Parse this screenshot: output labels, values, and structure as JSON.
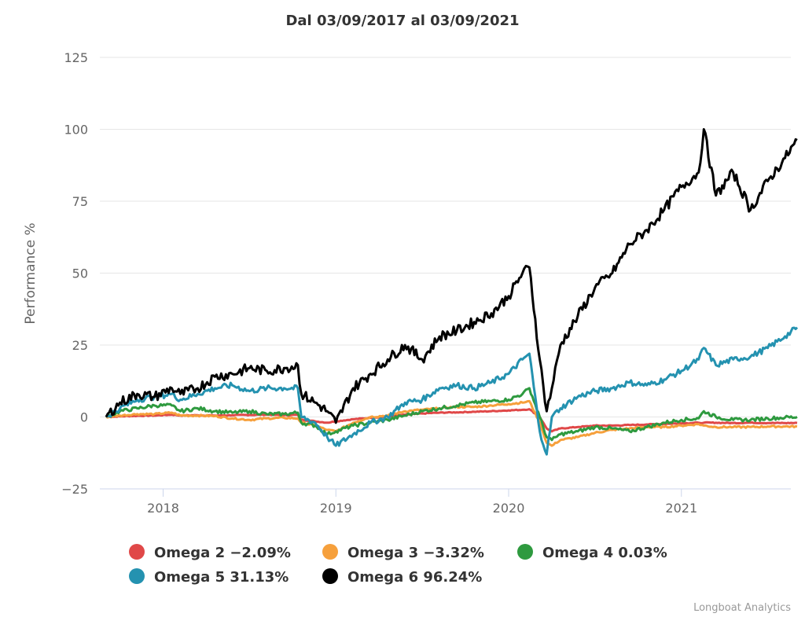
{
  "chart_data": {
    "type": "line",
    "title": "Dal 03/09/2017 al 03/09/2021",
    "xlabel": "",
    "ylabel": "Performance %",
    "xlim": [
      2017.67,
      2021.67
    ],
    "ylim": [
      -25,
      125
    ],
    "yticks": [
      "−25",
      "0",
      "25",
      "50",
      "75",
      "100",
      "125"
    ],
    "ytick_values": [
      -25,
      0,
      25,
      50,
      75,
      100,
      125
    ],
    "xticks": [
      "2018",
      "2019",
      "2020",
      "2021"
    ],
    "xtick_values": [
      2018,
      2019,
      2020,
      2021
    ],
    "grid": true,
    "legend_position": "bottom",
    "credits": "Longboat Analytics",
    "x": [
      2017.67,
      2017.75,
      2017.85,
      2017.95,
      2018.05,
      2018.1,
      2018.2,
      2018.3,
      2018.4,
      2018.5,
      2018.6,
      2018.7,
      2018.78,
      2018.8,
      2018.88,
      2018.95,
      2019.0,
      2019.1,
      2019.2,
      2019.3,
      2019.4,
      2019.5,
      2019.6,
      2019.7,
      2019.8,
      2019.9,
      2020.0,
      2020.08,
      2020.12,
      2020.18,
      2020.22,
      2020.25,
      2020.3,
      2020.4,
      2020.5,
      2020.6,
      2020.7,
      2020.8,
      2020.9,
      2021.0,
      2021.1,
      2021.13,
      2021.2,
      2021.3,
      2021.4,
      2021.5,
      2021.6,
      2021.67
    ],
    "series": [
      {
        "name": "Omega 2",
        "legend": "Omega 2 −2.09%",
        "color": "#e04848",
        "values": [
          0,
          0.2,
          0.4,
          0.5,
          0.8,
          0.5,
          0.6,
          0.5,
          0.6,
          0.7,
          0.8,
          0.6,
          0.7,
          -1.0,
          -1.5,
          -2.0,
          -1.5,
          -0.8,
          -0.3,
          0.2,
          0.8,
          1.2,
          1.5,
          1.6,
          1.8,
          2.0,
          2.3,
          2.5,
          2.7,
          0,
          -4.0,
          -5.0,
          -4.0,
          -3.5,
          -3.0,
          -3.0,
          -2.8,
          -2.6,
          -2.4,
          -2.2,
          -2.0,
          -2.0,
          -2.0,
          -2.1,
          -2.0,
          -2.1,
          -2.1,
          -2.09
        ]
      },
      {
        "name": "Omega 3",
        "legend": "Omega 3 −3.32%",
        "color": "#f6a03c",
        "values": [
          0,
          0.5,
          1.0,
          1.0,
          1.5,
          0.5,
          0.5,
          0.3,
          -0.5,
          -1.0,
          -0.5,
          -0.3,
          -0.5,
          -2.0,
          -3.0,
          -4.5,
          -5.0,
          -2.0,
          0,
          0.5,
          2.0,
          2.5,
          3.0,
          3.5,
          3.5,
          4.0,
          4.5,
          5.0,
          5.5,
          -2.0,
          -9.0,
          -10.0,
          -8.0,
          -7.0,
          -5.5,
          -4.5,
          -4.0,
          -3.5,
          -3.5,
          -3.0,
          -2.5,
          -3.0,
          -3.5,
          -3.5,
          -3.5,
          -3.3,
          -3.3,
          -3.32
        ]
      },
      {
        "name": "Omega 4",
        "legend": "Omega 4 0.03%",
        "color": "#2e9a3f",
        "values": [
          0,
          2.0,
          3.0,
          4.0,
          4.0,
          2.0,
          3.0,
          2.0,
          1.5,
          2.0,
          1.0,
          1.0,
          1.5,
          -2.0,
          -3.0,
          -6.0,
          -5.0,
          -3.0,
          -2.0,
          -1.0,
          0.5,
          2.0,
          3.0,
          4.0,
          5.0,
          5.5,
          6.0,
          8.0,
          10.0,
          0,
          -7.0,
          -8.0,
          -6.0,
          -5.0,
          -3.5,
          -4.0,
          -5.0,
          -3.5,
          -2.0,
          -1.0,
          -0.5,
          2.0,
          0,
          -1.0,
          -1.0,
          -0.5,
          -0.2,
          0.03
        ]
      },
      {
        "name": "Omega 5",
        "legend": "Omega 5 31.13%",
        "color": "#2492b0",
        "values": [
          0,
          3.0,
          6.0,
          7.0,
          8.0,
          6.0,
          8.0,
          10.0,
          11.0,
          9.0,
          10.0,
          10.0,
          10.0,
          0,
          -2.0,
          -7.0,
          -10.0,
          -6.0,
          -2.0,
          0,
          5.0,
          6.0,
          10.0,
          11.0,
          10.0,
          12.0,
          15.0,
          20.0,
          22.0,
          -5.0,
          -13.0,
          0,
          3.0,
          7.0,
          9.0,
          10.0,
          12.0,
          11.0,
          13.0,
          16.0,
          20.0,
          24.0,
          18.0,
          20.0,
          21.0,
          24.0,
          28.0,
          31.13
        ]
      },
      {
        "name": "Omega 6",
        "legend": "Omega 6 96.24%",
        "color": "#000000",
        "values": [
          0,
          5.0,
          8.0,
          7.0,
          10.0,
          8.0,
          10.0,
          14.0,
          15.0,
          17.0,
          16.0,
          17.0,
          18.0,
          8.0,
          5.0,
          2.0,
          -2.0,
          10.0,
          15.0,
          20.0,
          25.0,
          20.0,
          28.0,
          30.0,
          33.0,
          36.0,
          42.0,
          50.0,
          52.0,
          20.0,
          2.0,
          10.0,
          25.0,
          35.0,
          45.0,
          50.0,
          60.0,
          65.0,
          72.0,
          80.0,
          85.0,
          100.0,
          77.0,
          85.0,
          72.0,
          82.0,
          90.0,
          96.24
        ]
      }
    ]
  }
}
